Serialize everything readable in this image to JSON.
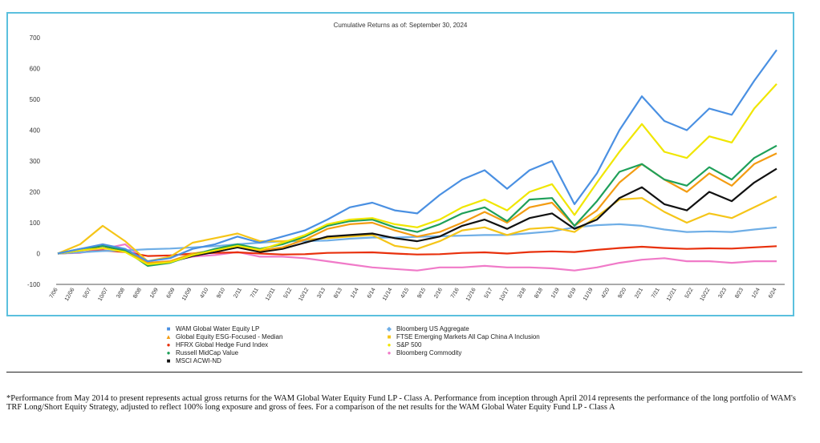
{
  "chart_data": {
    "type": "line",
    "title": "Cumulative Returns as of: September 30, 2024",
    "xlabel": "",
    "ylabel": "",
    "ylim": [
      -100,
      700
    ],
    "y_ticks": [
      -100,
      0,
      100,
      200,
      300,
      400,
      500,
      600,
      700
    ],
    "grid": false,
    "legend_position": "bottom",
    "x_tick_labels": [
      "7/06",
      "12/06",
      "5/07",
      "10/07",
      "3/08",
      "8/08",
      "1/09",
      "6/09",
      "11/09",
      "4/10",
      "9/10",
      "2/11",
      "7/11",
      "12/11",
      "5/12",
      "10/12",
      "3/13",
      "8/13",
      "1/14",
      "6/14",
      "11/14",
      "4/15",
      "9/15",
      "2/16",
      "7/16",
      "12/16",
      "5/17",
      "10/17",
      "3/18",
      "8/18",
      "1/19",
      "6/19",
      "11/19",
      "4/20",
      "9/20",
      "2/21",
      "7/21",
      "12/21",
      "5/22",
      "10/22",
      "3/23",
      "8/23",
      "1/24",
      "6/24"
    ],
    "x": [
      "7/06",
      "3/07",
      "10/07",
      "5/08",
      "12/08",
      "3/09",
      "10/09",
      "6/10",
      "3/11",
      "10/11",
      "6/12",
      "3/13",
      "12/13",
      "10/14",
      "4/15",
      "9/15",
      "2/16",
      "12/16",
      "8/17",
      "3/18",
      "12/18",
      "6/19",
      "2/20",
      "4/20",
      "11/20",
      "6/21",
      "12/21",
      "6/22",
      "10/22",
      "6/23",
      "12/23",
      "6/24",
      "9/24"
    ],
    "series": [
      {
        "name": "WAM Global Water Equity LP",
        "color": "#4a90e2",
        "values": [
          0,
          15,
          30,
          15,
          -25,
          -15,
          15,
          30,
          55,
          35,
          55,
          75,
          110,
          150,
          165,
          140,
          130,
          190,
          240,
          270,
          210,
          270,
          300,
          160,
          260,
          400,
          510,
          430,
          400,
          470,
          450,
          560,
          660
        ]
      },
      {
        "name": "Global Equity ESG-Focused - Median",
        "color": "#f39c12",
        "values": [
          0,
          10,
          30,
          10,
          -30,
          -25,
          0,
          10,
          25,
          10,
          20,
          45,
          80,
          95,
          100,
          75,
          55,
          70,
          100,
          135,
          100,
          150,
          165,
          90,
          140,
          230,
          290,
          240,
          200,
          260,
          220,
          290,
          325
        ]
      },
      {
        "name": "HFRX Global Hedge Fund Index",
        "color": "#e8300c",
        "values": [
          0,
          4,
          10,
          5,
          -8,
          -6,
          0,
          2,
          4,
          0,
          -3,
          -2,
          2,
          3,
          4,
          0,
          -3,
          -2,
          2,
          4,
          0,
          5,
          7,
          5,
          12,
          18,
          22,
          18,
          15,
          17,
          16,
          20,
          24
        ]
      },
      {
        "name": "Russell MidCap Value",
        "color": "#1fa05a",
        "values": [
          0,
          15,
          25,
          10,
          -40,
          -30,
          -5,
          15,
          30,
          15,
          30,
          55,
          90,
          105,
          110,
          85,
          70,
          95,
          130,
          150,
          105,
          175,
          180,
          90,
          170,
          265,
          290,
          240,
          220,
          280,
          240,
          310,
          350
        ]
      },
      {
        "name": "MSCI ACWI-ND",
        "color": "#111111",
        "values": [
          0,
          10,
          25,
          8,
          -35,
          -28,
          -8,
          5,
          20,
          5,
          15,
          35,
          55,
          60,
          65,
          50,
          40,
          55,
          90,
          110,
          80,
          115,
          130,
          80,
          110,
          180,
          215,
          160,
          140,
          200,
          170,
          230,
          275
        ]
      },
      {
        "name": "Bloomberg US Aggregate",
        "color": "#6faee6",
        "values": [
          0,
          4,
          8,
          10,
          14,
          16,
          20,
          24,
          30,
          35,
          40,
          40,
          42,
          48,
          52,
          52,
          54,
          56,
          58,
          60,
          60,
          66,
          72,
          85,
          92,
          95,
          90,
          78,
          70,
          72,
          70,
          78,
          85
        ]
      },
      {
        "name": "FTSE Emerging Markets All Cap China A Inclusion",
        "color": "#f5c518",
        "values": [
          0,
          30,
          90,
          40,
          -25,
          -10,
          35,
          50,
          65,
          40,
          40,
          45,
          50,
          55,
          60,
          25,
          15,
          40,
          75,
          85,
          60,
          80,
          85,
          70,
          120,
          175,
          180,
          135,
          100,
          130,
          115,
          150,
          185
        ]
      },
      {
        "name": "S&P 500",
        "color": "#f0e600",
        "values": [
          0,
          10,
          18,
          5,
          -35,
          -28,
          -5,
          10,
          25,
          12,
          35,
          60,
          95,
          110,
          115,
          95,
          85,
          110,
          150,
          175,
          140,
          200,
          225,
          125,
          230,
          330,
          420,
          330,
          310,
          380,
          360,
          470,
          550
        ]
      },
      {
        "name": "Bloomberg Commodity",
        "color": "#f07ac8",
        "values": [
          0,
          2,
          15,
          30,
          -30,
          -25,
          -10,
          -5,
          5,
          -10,
          -10,
          -15,
          -25,
          -35,
          -45,
          -50,
          -55,
          -45,
          -45,
          -40,
          -45,
          -45,
          -48,
          -55,
          -45,
          -30,
          -20,
          -15,
          -25,
          -25,
          -30,
          -25,
          -25
        ]
      }
    ]
  },
  "legend": [
    {
      "label": "WAM Global Water Equity LP",
      "marker": "■",
      "color": "#4a90e2"
    },
    {
      "label": "Global Equity ESG-Focused - Median",
      "marker": "▲",
      "color": "#f39c12"
    },
    {
      "label": "HFRX Global Hedge Fund Index",
      "marker": "●",
      "color": "#e8300c"
    },
    {
      "label": "Russell MidCap Value",
      "marker": "●",
      "color": "#1fa05a"
    },
    {
      "label": "MSCI ACWI-ND",
      "marker": "■",
      "color": "#111111"
    },
    {
      "label": "Bloomberg US Aggregate",
      "marker": "◆",
      "color": "#6faee6"
    },
    {
      "label": "FTSE Emerging Markets All Cap China A Inclusion",
      "marker": "■",
      "color": "#f5c518"
    },
    {
      "label": "S&P 500",
      "marker": "●",
      "color": "#f0e600"
    },
    {
      "label": "Bloomberg Commodity",
      "marker": "●",
      "color": "#f07ac8"
    }
  ],
  "footnote": "*Performance from May 2014 to present represents actual gross returns for the WAM Global Water Equity Fund LP - Class A. Performance from inception through April 2014 represents the performance of the long portfolio of WAM's TRF Long/Short Equity Strategy, adjusted to reflect 100% long exposure and gross of fees. For a comparison of the net results for the WAM Global Water Equity Fund LP - Class A"
}
